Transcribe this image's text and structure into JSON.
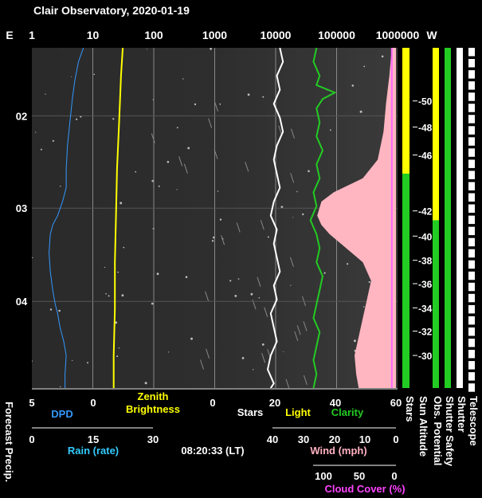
{
  "chart_data": {
    "type": "line",
    "title": "Clair Observatory, 2020-01-19",
    "time_label": "08:20:33 (LT)",
    "colors": {
      "background": "#000000",
      "dpd": "#3399ff",
      "zenith": "#ffff00",
      "stars": "#ffffff",
      "clarity": "#22cc22",
      "cloud": "#ff66ff",
      "light": "#ffffff",
      "rain": "#33ccff",
      "wind": "#ffb0c0",
      "cloud_label": "#ff44ff",
      "title": "#ffffff",
      "strip_yellow": "#ffff00",
      "strip_green": "#22cc22"
    },
    "top_axis": {
      "left_label": "E",
      "right_label": "W",
      "scale": "log",
      "ticks": [
        "1",
        "10",
        "100",
        "1000",
        "10000",
        "100000",
        "1000000"
      ]
    },
    "time_axis": {
      "ticks": [
        "02",
        "03",
        "04"
      ],
      "start_hour": 1.2,
      "end_hour": 4.85
    },
    "altitude_axis": {
      "ticks": [
        "-50",
        "-48",
        "-46",
        "-42",
        "-40",
        "-38",
        "-36",
        "-34",
        "-32",
        "-30"
      ],
      "hours": [
        1.77,
        2.05,
        2.35,
        2.95,
        3.22,
        3.48,
        3.73,
        3.99,
        4.24,
        4.5
      ]
    },
    "bottom_axes": {
      "dpd_ticks": [
        "5",
        "0"
      ],
      "dpd_label": "DPD",
      "zenith_label_1": "Zenith",
      "zenith_label_2": "Brightness",
      "stars_ticks": [
        "0",
        "20",
        "40",
        "60"
      ],
      "stars_label": "Stars",
      "light_label": "Light",
      "clarity_label": "Clarity",
      "rain_ticks": [
        "0",
        "15",
        "30"
      ],
      "rain_label": "Rain (rate)",
      "wind_ticks": [
        "40",
        "30",
        "20",
        "10",
        "0"
      ],
      "wind_label": "Wind (mph)",
      "cloud_ticks": [
        "100",
        "50",
        "0"
      ],
      "cloud_label": "Cloud Cover (%)",
      "forecast_label": "Forecast Precip."
    },
    "status_strips": {
      "labels": [
        "Stars",
        "Sun Altitude",
        "Obs. Potential",
        "Shutter Safety",
        "Shutter",
        "Telescope"
      ]
    },
    "series": [
      {
        "name": "DPD",
        "scale": "dpd (5 to 0)",
        "x": [
          1.2,
          1.35,
          1.55,
          1.75,
          2.0,
          2.25,
          2.5,
          2.7,
          2.85,
          3.0,
          3.1,
          3.2,
          3.4,
          3.6,
          3.8,
          3.95,
          4.05,
          4.2,
          4.35,
          4.5,
          4.7,
          4.85
        ],
        "y": [
          0.8,
          1.2,
          1.5,
          1.7,
          1.9,
          2.1,
          2.2,
          2.2,
          2.5,
          2.9,
          3.3,
          3.5,
          3.6,
          3.5,
          3.3,
          3.1,
          2.9,
          2.7,
          2.4,
          2.2,
          2.3,
          2.3
        ]
      },
      {
        "name": "Zenith Brightness",
        "scale": "log",
        "x": [
          1.2,
          1.5,
          2.0,
          2.5,
          3.0,
          3.5,
          4.0,
          4.5,
          4.85
        ],
        "y": [
          31,
          29,
          27,
          25,
          24,
          23,
          23,
          22,
          22
        ]
      },
      {
        "name": "Stars",
        "scale": "stars (0 to 60)",
        "x": [
          1.2,
          1.35,
          1.5,
          1.65,
          1.8,
          1.95,
          2.1,
          2.25,
          2.4,
          2.55,
          2.7,
          2.85,
          3.0,
          3.15,
          3.3,
          3.45,
          3.6,
          3.75,
          3.9,
          4.05,
          4.2,
          4.35,
          4.5,
          4.65,
          4.8,
          4.85
        ],
        "y": [
          22,
          23,
          21,
          22,
          20,
          22,
          23,
          21,
          20,
          21,
          22,
          20,
          19,
          21,
          20,
          21,
          22,
          20,
          21,
          19,
          20,
          21,
          19,
          18,
          20,
          19
        ]
      },
      {
        "name": "Clarity",
        "scale": "stars (0 to 60)",
        "x": [
          1.2,
          1.35,
          1.5,
          1.6,
          1.68,
          1.75,
          1.85,
          2.0,
          2.15,
          2.3,
          2.45,
          2.6,
          2.75,
          2.9,
          3.05,
          3.2,
          3.35,
          3.5,
          3.65,
          3.8,
          3.95,
          4.1,
          4.25,
          4.4,
          4.55,
          4.7,
          4.85
        ],
        "y": [
          34,
          33,
          35,
          34,
          40,
          36,
          34,
          35,
          34,
          36,
          34,
          35,
          33,
          34,
          32,
          34,
          35,
          34,
          36,
          35,
          34,
          33,
          35,
          34,
          33,
          34,
          33
        ]
      },
      {
        "name": "Cloud Cover",
        "scale": "cloud (100 to 0)",
        "x": [
          1.2,
          1.5,
          1.8,
          2.1,
          2.4,
          2.6,
          2.75,
          2.85,
          3.0,
          3.1,
          3.2,
          3.35,
          3.5,
          3.7,
          3.9,
          4.1,
          4.3,
          4.5,
          4.7,
          4.85
        ],
        "y": [
          5,
          8,
          12,
          15,
          22,
          40,
          75,
          90,
          95,
          90,
          80,
          60,
          40,
          30,
          35,
          40,
          45,
          50,
          48,
          45
        ]
      }
    ]
  }
}
